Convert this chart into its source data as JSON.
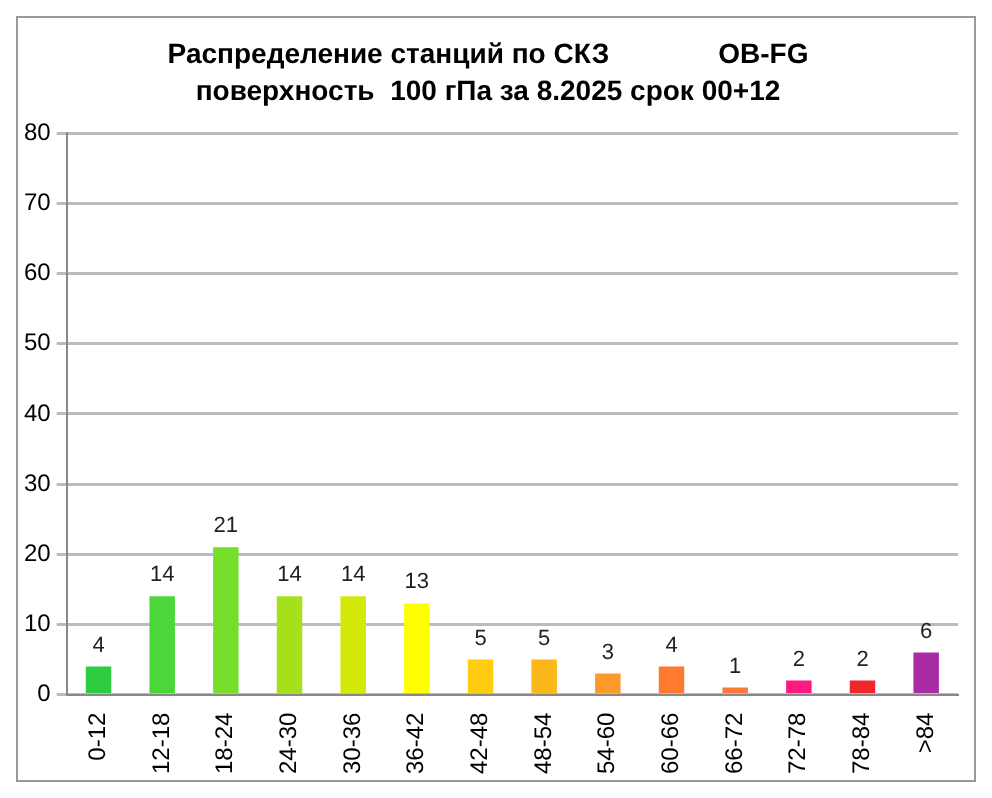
{
  "chart_data": {
    "type": "bar",
    "title": "Распределение станций по СКЗ              OB-FG",
    "subtitle": "поверхность  100 гПа за 8.2025 срок 00+12",
    "categories": [
      "0-12",
      "12-18",
      "18-24",
      "24-30",
      "30-36",
      "36-42",
      "42-48",
      "48-54",
      "54-60",
      "60-66",
      "66-72",
      "72-78",
      "78-84",
      ">84"
    ],
    "values": [
      4,
      14,
      21,
      14,
      14,
      13,
      5,
      5,
      3,
      4,
      1,
      2,
      2,
      6
    ],
    "colors": [
      "#2ecc40",
      "#4cd63a",
      "#76dd2a",
      "#a6e01c",
      "#d4e80a",
      "#ffff00",
      "#ffcc11",
      "#fbb81a",
      "#fb9a2a",
      "#fc7b2e",
      "#fb7a3a",
      "#ff1a80",
      "#f0282e",
      "#a92ca4"
    ],
    "ylim": [
      0,
      80
    ],
    "yticks": [
      0,
      10,
      20,
      30,
      40,
      50,
      60,
      70,
      80
    ],
    "grid": "y",
    "data_labels": true,
    "legend": false
  }
}
